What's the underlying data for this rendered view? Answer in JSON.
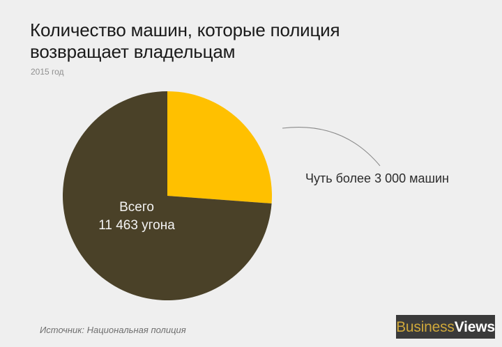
{
  "header": {
    "title_line1": "Количество машин, которые полиция",
    "title_line2": "возвращает владельцам",
    "subtitle": "2015 год"
  },
  "chart_data": {
    "type": "pie",
    "slices": [
      {
        "label": "Чуть более 3 000 машин",
        "value": 3000,
        "color": "#ffc000"
      },
      {
        "label": "",
        "value": 8463,
        "color": "#4a4128"
      }
    ],
    "total_label_line1": "Всего",
    "total_label_line2": "11 463 угона",
    "title": "Количество машин, которые полиция возвращает владельцам",
    "subtitle": "2015 год"
  },
  "footer": {
    "source": "Источник: Национальная полиция",
    "brand_part1": "Business",
    "brand_part2": "Views"
  }
}
